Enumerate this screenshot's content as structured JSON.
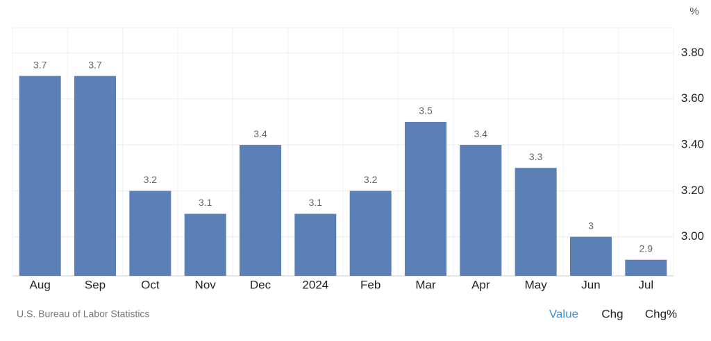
{
  "chart_data": {
    "type": "bar",
    "unit": "%",
    "categories": [
      "Aug",
      "Sep",
      "Oct",
      "Nov",
      "Dec",
      "2024",
      "Feb",
      "Mar",
      "Apr",
      "May",
      "Jun",
      "Jul"
    ],
    "values": [
      3.7,
      3.7,
      3.2,
      3.1,
      3.4,
      3.1,
      3.2,
      3.5,
      3.4,
      3.3,
      3,
      2.9
    ],
    "color": "#5b80b8",
    "ylim": [
      2.83,
      3.91
    ],
    "yticks": [
      {
        "value": 3.0,
        "label": "3.00"
      },
      {
        "value": 3.2,
        "label": "3.20"
      },
      {
        "value": 3.4,
        "label": "3.40"
      },
      {
        "value": 3.6,
        "label": "3.60"
      },
      {
        "value": 3.8,
        "label": "3.80"
      }
    ],
    "grid": true
  },
  "source": "U.S. Bureau of Labor Statistics",
  "controls": [
    "Value",
    "Chg",
    "Chg%"
  ]
}
